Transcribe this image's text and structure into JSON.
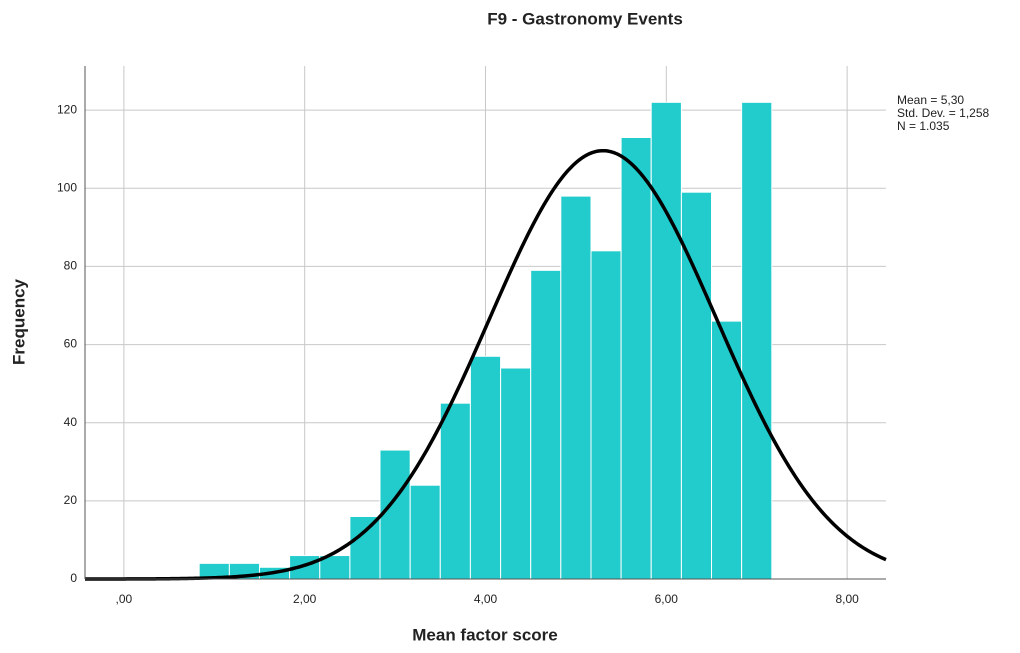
{
  "chart_data": {
    "type": "histogram",
    "title": "F9 - Gastronomy Events",
    "x_label": "Mean factor score",
    "y_label": "Frequency",
    "bins": [
      0.833,
      1.167,
      1.5,
      1.833,
      2.167,
      2.5,
      2.833,
      3.167,
      3.5,
      3.833,
      4.167,
      4.5,
      4.833,
      5.167,
      5.5,
      5.833,
      6.167,
      6.5,
      6.833,
      7.167
    ],
    "values": [
      4,
      4,
      3,
      6,
      6,
      16,
      33,
      24,
      45,
      57,
      54,
      79,
      98,
      84,
      113,
      122,
      99,
      66,
      122
    ],
    "color": "#22cccc",
    "normal": {
      "mean": 5.3,
      "std": 1.258,
      "n": 1035,
      "color": "#000000",
      "labels": [
        "Mean = 5,30",
        "Std. Dev. = 1,258",
        "N = 1.035"
      ]
    },
    "xlim": [
      -0.43,
      8.43
    ],
    "ylim": [
      0,
      131.3
    ],
    "xticks": [
      {
        "value": 0,
        "label": ",00"
      },
      {
        "value": 2,
        "label": "2,00"
      },
      {
        "value": 4,
        "label": "4,00"
      },
      {
        "value": 6,
        "label": "6,00"
      },
      {
        "value": 8,
        "label": "8,00"
      }
    ],
    "yticks": [
      0,
      20,
      40,
      60,
      80,
      100,
      120
    ],
    "grid": true
  }
}
